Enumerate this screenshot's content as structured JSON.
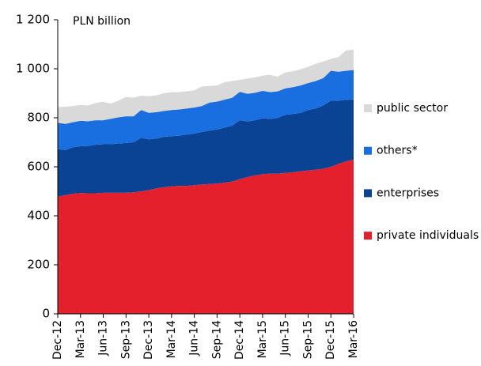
{
  "chart_data": {
    "type": "stacked_area",
    "y_label": "PLN billion",
    "categories": [
      "Dec-12",
      null,
      null,
      "Mar-13",
      null,
      null,
      "Jun-13",
      null,
      null,
      "Sep-13",
      null,
      null,
      "Dec-13",
      null,
      null,
      "Mar-14",
      null,
      null,
      "Jun-14",
      null,
      null,
      "Sep-14",
      null,
      null,
      "Dec-14",
      null,
      null,
      "Mar-15",
      null,
      null,
      "Jun-15",
      null,
      null,
      "Sep-15",
      null,
      null,
      "Dec-15",
      null,
      null,
      "Mar-16"
    ],
    "series": [
      {
        "name": "private individuals",
        "color": "#e3202b",
        "values": [
          478,
          485,
          490,
          493,
          492,
          492,
          494,
          494,
          494,
          494,
          496,
          500,
          505,
          512,
          517,
          520,
          522,
          522,
          525,
          528,
          530,
          532,
          535,
          540,
          550,
          558,
          565,
          570,
          572,
          572,
          575,
          578,
          582,
          585,
          588,
          592,
          600,
          612,
          622,
          630
        ]
      },
      {
        "name": "enterprises",
        "color": "#0a4393",
        "values": [
          194,
          183,
          190,
          191,
          193,
          198,
          198,
          198,
          201,
          203,
          204,
          218,
          207,
          203,
          205,
          205,
          205,
          210,
          211,
          214,
          218,
          220,
          225,
          228,
          240,
          227,
          225,
          228,
          223,
          228,
          237,
          237,
          238,
          247,
          250,
          258,
          270,
          258,
          251,
          245
        ]
      },
      {
        "name": "others*",
        "color": "#1a6fe0",
        "values": [
          108,
          107,
          102,
          104,
          101,
          100,
          98,
          104,
          107,
          109,
          106,
          114,
          108,
          108,
          106,
          107,
          107,
          106,
          106,
          106,
          114,
          114,
          114,
          114,
          116,
          113,
          112,
          112,
          110,
          108,
          108,
          110,
          112,
          110,
          112,
          112,
          122,
          118,
          119,
          120
        ]
      },
      {
        "name": "public sector",
        "color": "#d9d9d9",
        "values": [
          63,
          70,
          66,
          64,
          64,
          70,
          75,
          62,
          68,
          79,
          76,
          58,
          68,
          69,
          72,
          73,
          71,
          70,
          70,
          80,
          68,
          66,
          71,
          68,
          49,
          62,
          63,
          62,
          70,
          60,
          65,
          65,
          66,
          66,
          70,
          68,
          48,
          60,
          83,
          83
        ]
      }
    ],
    "ylim": [
      0,
      1200
    ],
    "yticks": [
      0,
      200,
      400,
      600,
      800,
      {
        "value": 1000,
        "label": "1 000"
      },
      {
        "value": 1200,
        "label": "1 200"
      }
    ],
    "legend": "right"
  }
}
